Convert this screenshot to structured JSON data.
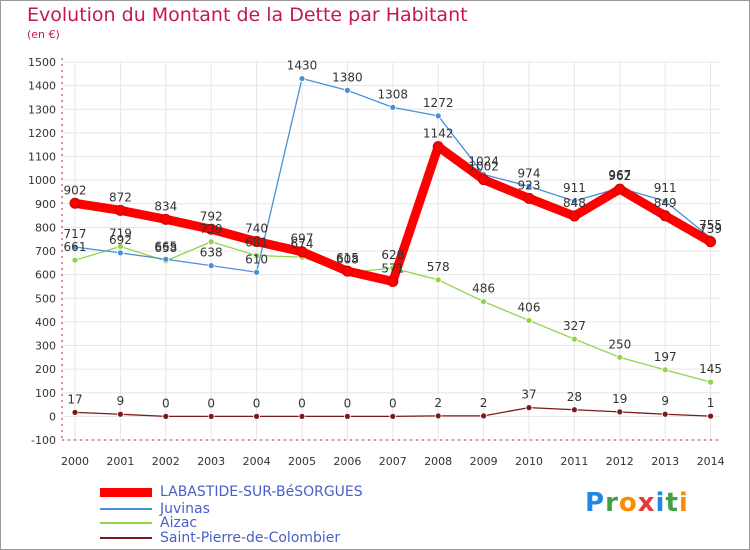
{
  "header": {
    "title": "Evolution du Montant de la Dette par Habitant",
    "unit": "(en €)"
  },
  "chart_data": {
    "type": "line",
    "x": [
      2000,
      2001,
      2002,
      2003,
      2004,
      2005,
      2006,
      2007,
      2008,
      2009,
      2010,
      2011,
      2012,
      2013,
      2014
    ],
    "ylim": [
      -100,
      1500
    ],
    "yticks": [
      -100,
      0,
      100,
      200,
      300,
      400,
      500,
      600,
      700,
      800,
      900,
      1000,
      1100,
      1200,
      1300,
      1400,
      1500
    ],
    "grid": true,
    "legend_position": "bottom-left",
    "series": [
      {
        "name": "LABASTIDE-SUR-BéSORGUES",
        "color": "#ff0000",
        "values": [
          902,
          872,
          834,
          792,
          740,
          697,
          615,
          571,
          1142,
          1002,
          923,
          848,
          962,
          849,
          739
        ],
        "labels": [
          "902",
          "872",
          "834",
          "792",
          "740",
          "697",
          "615",
          "571",
          "1142",
          "1002",
          "923",
          "848",
          "962",
          "849",
          "739"
        ]
      },
      {
        "name": "Juvinas",
        "color": "#4a90d9",
        "values": [
          717,
          692,
          665,
          638,
          610,
          1430,
          1380,
          1308,
          1272,
          1024,
          974,
          911,
          967,
          911,
          755
        ],
        "labels": [
          "717",
          "692",
          "665",
          "638",
          "610",
          "1430",
          "1380",
          "1308",
          "1272",
          "1024",
          "974",
          "911",
          "967",
          "911",
          "755"
        ]
      },
      {
        "name": "Aizac",
        "color": "#8fd44a",
        "values": [
          661,
          719,
          658,
          739,
          681,
          674,
          608,
          628,
          578,
          486,
          406,
          327,
          250,
          197,
          145
        ],
        "labels": [
          "661",
          "719",
          "658",
          "739",
          "681",
          "674",
          "608",
          "628",
          "578",
          "486",
          "406",
          "327",
          "250",
          "197",
          "145"
        ]
      },
      {
        "name": "Saint-Pierre-de-Colombier",
        "color": "#7b1a1a",
        "values": [
          17,
          9,
          0,
          0,
          0,
          0,
          0,
          0,
          2,
          2,
          37,
          28,
          19,
          9,
          1
        ],
        "labels": [
          "17",
          "9",
          "0",
          "0",
          "0",
          "0",
          "0",
          "0",
          "2",
          "2",
          "37",
          "28",
          "19",
          "9",
          "1"
        ]
      }
    ]
  },
  "logo": {
    "letters": [
      "P",
      "r",
      "o",
      "x",
      "i",
      "t",
      "i"
    ]
  }
}
